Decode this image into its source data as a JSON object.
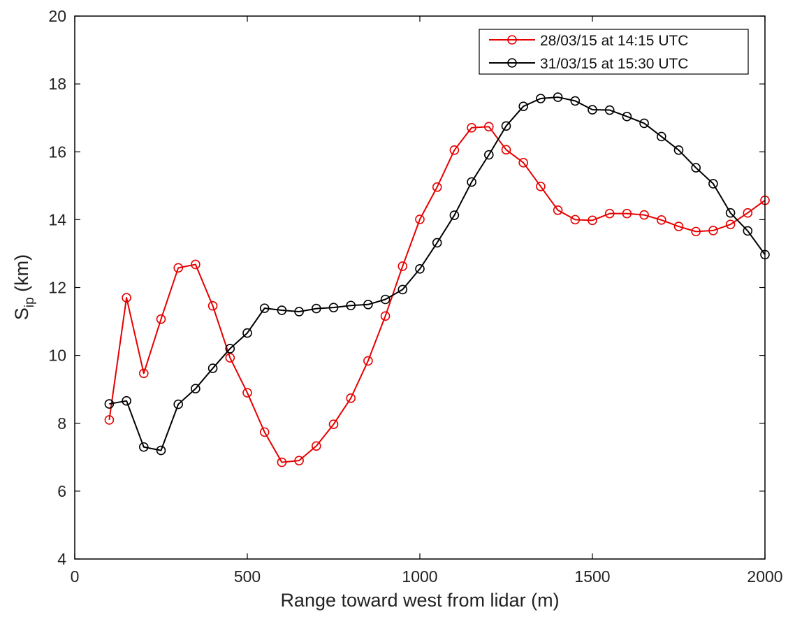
{
  "chart_data": {
    "type": "line",
    "xlabel": "Range toward west from lidar (m)",
    "ylabel": {
      "main": "S",
      "sub": "ip",
      "unit": " (km)"
    },
    "xlim": [
      0,
      2000
    ],
    "ylim": [
      4,
      20
    ],
    "xticks": [
      0,
      500,
      1000,
      1500,
      2000
    ],
    "yticks": [
      4,
      6,
      8,
      10,
      12,
      14,
      16,
      18,
      20
    ],
    "grid": false,
    "legend_position": "top-right",
    "x": [
      100,
      150,
      200,
      250,
      300,
      350,
      400,
      450,
      500,
      550,
      600,
      650,
      700,
      750,
      800,
      850,
      900,
      950,
      1000,
      1050,
      1100,
      1150,
      1200,
      1250,
      1300,
      1350,
      1400,
      1450,
      1500,
      1550,
      1600,
      1650,
      1700,
      1750,
      1800,
      1850,
      1900,
      1950,
      2000
    ],
    "series": [
      {
        "name": "28/03/15 at 14:15 UTC",
        "color": "#e60000",
        "values": [
          8.1,
          11.7,
          9.47,
          11.07,
          12.58,
          12.68,
          11.46,
          9.93,
          8.9,
          7.74,
          6.85,
          6.9,
          7.33,
          7.97,
          8.74,
          9.84,
          11.16,
          12.63,
          14.01,
          14.96,
          16.05,
          16.71,
          16.74,
          16.06,
          15.68,
          14.98,
          14.28,
          14.0,
          13.98,
          14.18,
          14.18,
          14.14,
          13.99,
          13.8,
          13.65,
          13.68,
          13.86,
          14.2,
          14.57
        ]
      },
      {
        "name": "31/03/15 at 15:30 UTC",
        "color": "#000000",
        "values": [
          8.57,
          8.66,
          7.3,
          7.2,
          8.56,
          9.02,
          9.62,
          10.2,
          10.66,
          11.39,
          11.33,
          11.29,
          11.38,
          11.41,
          11.47,
          11.5,
          11.65,
          11.94,
          12.55,
          13.32,
          14.13,
          15.11,
          15.91,
          16.76,
          17.34,
          17.57,
          17.61,
          17.5,
          17.24,
          17.23,
          17.04,
          16.84,
          16.45,
          16.05,
          15.53,
          15.06,
          14.2,
          13.67,
          12.97
        ]
      }
    ]
  }
}
